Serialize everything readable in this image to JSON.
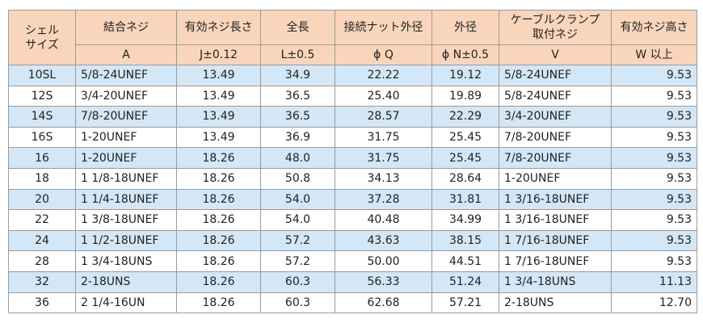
{
  "table": {
    "header_top": [
      "シェル\nサイズ",
      "結合ネジ",
      "有効ネジ長さ",
      "全長",
      "接続ナット外径",
      "外径",
      "ケーブルクランプ\n取付ネジ",
      "有効ネジ高さ"
    ],
    "header_sub": [
      "A",
      "J±0.12",
      "L±0.5",
      "ϕ Q",
      "ϕ N±0.5",
      "V",
      "W 以上"
    ],
    "rows": [
      [
        "10SL",
        "5/8-24UNEF",
        "13.49",
        "34.9",
        "22.22",
        "19.12",
        "5/8-24UNEF",
        "9.53"
      ],
      [
        "12S",
        "3/4-20UNEF",
        "13.49",
        "36.5",
        "25.40",
        "19.89",
        "5/8-24UNEF",
        "9.53"
      ],
      [
        "14S",
        "7/8-20UNEF",
        "13.49",
        "36.5",
        "28.57",
        "22.29",
        "3/4-20UNEF",
        "9.53"
      ],
      [
        "16S",
        "1-20UNEF",
        "13.49",
        "36.9",
        "31.75",
        "25.45",
        "7/8-20UNEF",
        "9.53"
      ],
      [
        "16",
        "1-20UNEF",
        "18.26",
        "48.0",
        "31.75",
        "25.45",
        "7/8-20UNEF",
        "9.53"
      ],
      [
        "18",
        "1 1/8-18UNEF",
        "18.26",
        "50.8",
        "34.13",
        "28.64",
        "1-20UNEF",
        "9.53"
      ],
      [
        "20",
        "1 1/4-18UNEF",
        "18.26",
        "54.0",
        "37.28",
        "31.81",
        "1 3/16-18UNEF",
        "9.53"
      ],
      [
        "22",
        "1 3/8-18UNEF",
        "18.26",
        "54.0",
        "40.48",
        "34.99",
        "1 3/16-18UNEF",
        "9.53"
      ],
      [
        "24",
        "1 1/2-18UNEF",
        "18.26",
        "57.2",
        "43.63",
        "38.15",
        "1 7/16-18UNEF",
        "9.53"
      ],
      [
        "28",
        "1 3/4-18UNS",
        "18.26",
        "57.2",
        "50.00",
        "44.51",
        "1 7/16-18UNEF",
        "9.53"
      ],
      [
        "32",
        "2-18UNS",
        "18.26",
        "60.3",
        "56.33",
        "51.24",
        "1 3/4-18UNS",
        "11.13"
      ],
      [
        "36",
        "2 1/4-16UN",
        "18.26",
        "60.3",
        "62.68",
        "57.21",
        "2-18UNS",
        "12.70"
      ]
    ]
  }
}
